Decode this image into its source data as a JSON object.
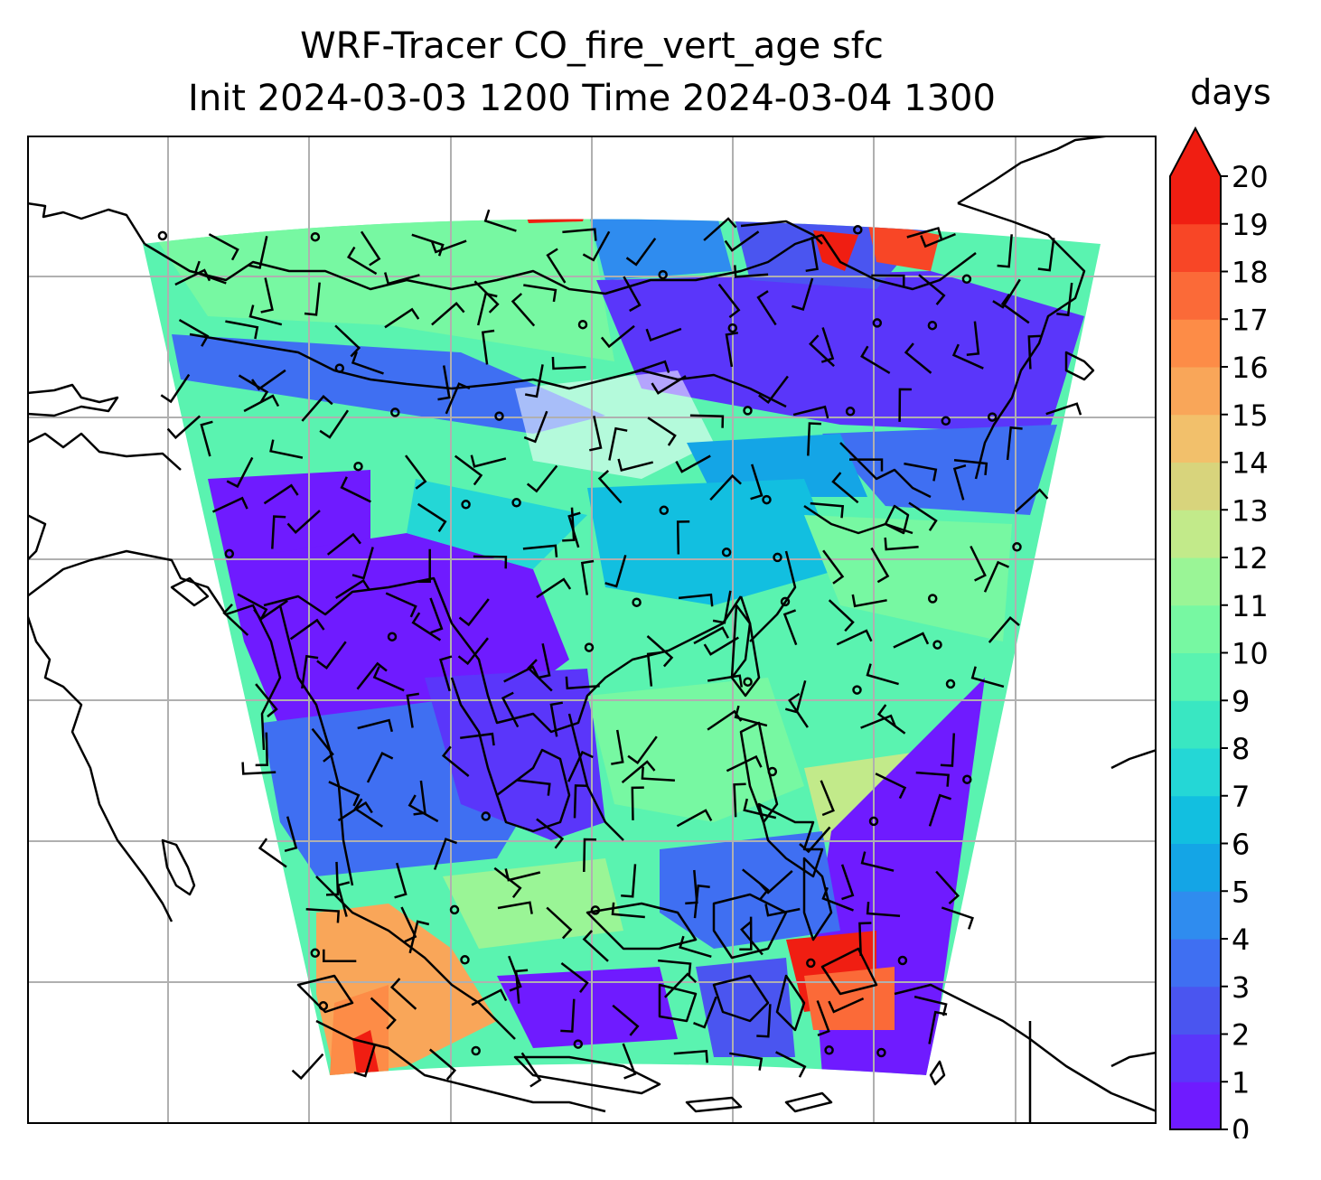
{
  "title": {
    "line1": "WRF-Tracer CO_fire_vert_age sfc",
    "line2": "Init 2024-03-03 1200 Time 2024-03-04 1300"
  },
  "colorbar": {
    "units": "days",
    "ticks": [
      0,
      1,
      2,
      3,
      4,
      5,
      6,
      7,
      8,
      9,
      10,
      11,
      12,
      13,
      14,
      15,
      16,
      17,
      18,
      19,
      20
    ],
    "colors": [
      "#6f1bff",
      "#5a36fa",
      "#4a55f0",
      "#3f6ff2",
      "#2f8cef",
      "#14a5e6",
      "#12bfe0",
      "#24d7d6",
      "#39e7c2",
      "#5af3b0",
      "#77f8a2",
      "#9af596",
      "#c2ea8a",
      "#d8d47c",
      "#f2c06b",
      "#f9a659",
      "#fd8c47",
      "#fb6a38",
      "#f84626",
      "#f01e12"
    ],
    "extend": "max"
  },
  "map": {
    "field": "CO_fire_vert_age",
    "gridlines": true,
    "coastlines": true,
    "wind_barbs": true
  },
  "colors": {
    "purple": "#6f1bff",
    "blue": "#3f6ff2",
    "cyan": "#24d7d6",
    "aqua": "#5af3b0",
    "green": "#9af596",
    "orange": "#f9a659",
    "red": "#f01e12"
  }
}
